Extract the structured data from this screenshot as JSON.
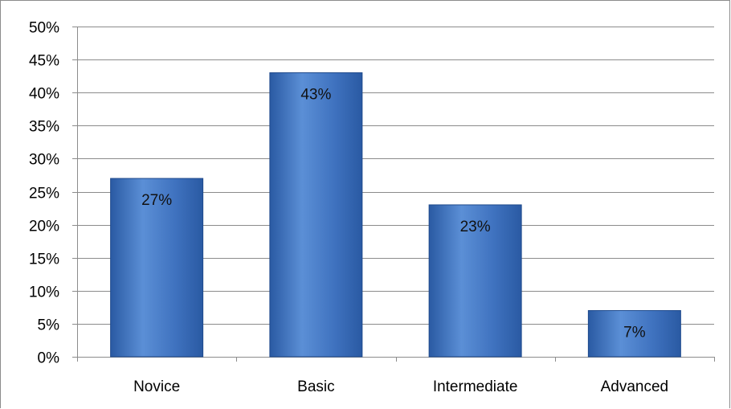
{
  "chart_data": {
    "type": "bar",
    "categories": [
      "Novice",
      "Basic",
      "Intermediate",
      "Advanced"
    ],
    "values": [
      27,
      43,
      23,
      7
    ],
    "data_labels": [
      "27%",
      "43%",
      "23%",
      "7%"
    ],
    "ylim": [
      0,
      50
    ],
    "y_ticks": [
      0,
      5,
      10,
      15,
      20,
      25,
      30,
      35,
      40,
      45,
      50
    ],
    "y_tick_labels": [
      "0%",
      "5%",
      "10%",
      "15%",
      "20%",
      "25%",
      "30%",
      "35%",
      "40%",
      "45%",
      "50%"
    ],
    "grid": true,
    "legend": "none",
    "colors": {
      "bar_light": "#5b8fd6",
      "bar_dark": "#2a5aa3",
      "bar_edge": "#1f4a8c",
      "grid": "#8c8c8c",
      "axis": "#8c8c8c"
    }
  }
}
